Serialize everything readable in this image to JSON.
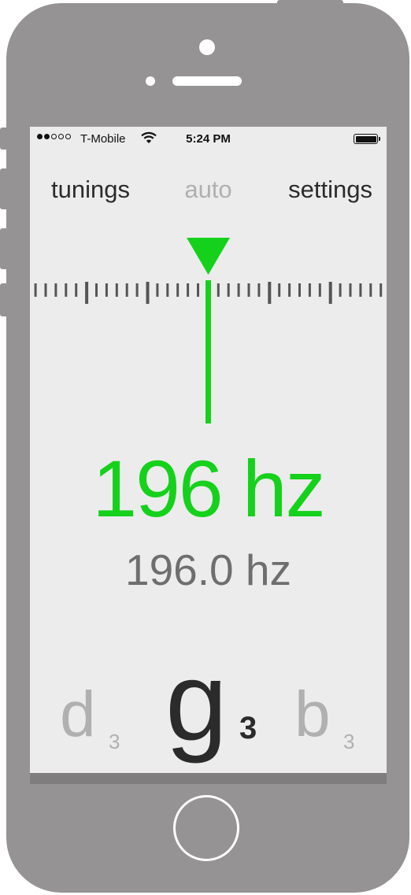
{
  "status_bar": {
    "carrier": "T-Mobile",
    "time": "5:24 PM",
    "signal_bars_filled": 2,
    "signal_bars_total": 5
  },
  "nav": {
    "left": "tunings",
    "center": "auto",
    "right": "settings"
  },
  "tuner": {
    "frequency_main": "196 hz",
    "frequency_detail": "196.0 hz",
    "needle_offset": 0
  },
  "notes": {
    "previous": {
      "letter": "d",
      "octave": "3"
    },
    "current": {
      "letter": "g",
      "octave": "3"
    },
    "next": {
      "letter": "b",
      "octave": "3"
    }
  },
  "colors": {
    "accent_green": "#16d11c",
    "phone_body": "#959394",
    "screen_bg": "#ececec",
    "tick_color": "#555555",
    "inactive_text": "#b0b0b0"
  }
}
